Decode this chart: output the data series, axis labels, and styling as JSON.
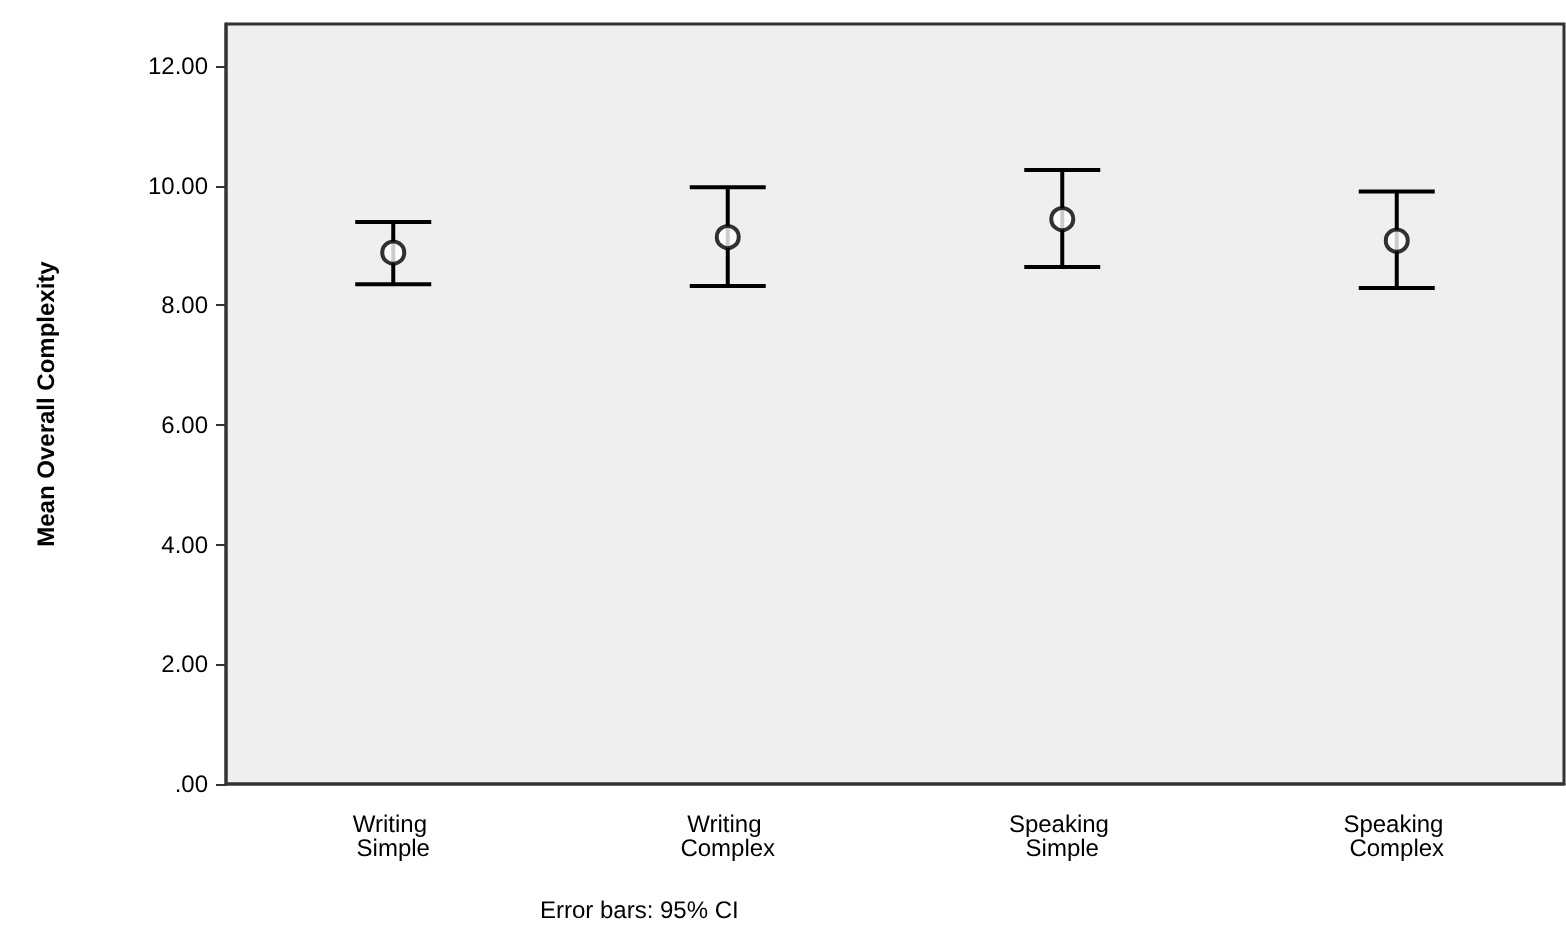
{
  "chart_data": {
    "type": "scatter",
    "ylabel": "Mean Overall Complexity",
    "categories": [
      "Writing Simple",
      "Writing Complex",
      "Speaking Simple",
      "Speaking Complex"
    ],
    "values": [
      8.88,
      9.14,
      9.44,
      9.08
    ],
    "errors": [
      [
        8.35,
        9.39
      ],
      [
        8.32,
        9.97
      ],
      [
        8.64,
        10.26
      ],
      [
        8.29,
        9.9
      ]
    ],
    "color": "#000000",
    "marker": "circle",
    "grid": false,
    "ylim": [
      0,
      12.7
    ],
    "yticks": [
      {
        "value": 0,
        "label": ".00"
      },
      {
        "value": 2,
        "label": "2.00"
      },
      {
        "value": 4,
        "label": "4.00"
      },
      {
        "value": 6,
        "label": "6.00"
      },
      {
        "value": 8,
        "label": "8.00"
      },
      {
        "value": 10,
        "label": "10.00"
      },
      {
        "value": 12,
        "label": "12.00"
      }
    ],
    "annotations": [
      "Error bars: 95% CI"
    ]
  }
}
